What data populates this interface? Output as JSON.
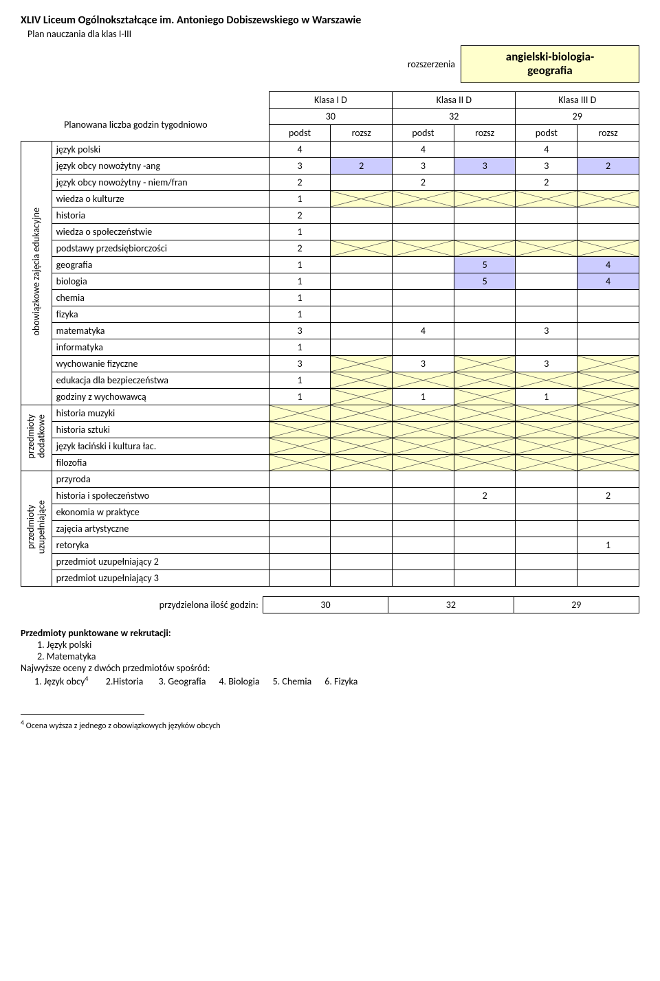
{
  "header": {
    "school": "XLIV Liceum Ogólnokształcące im. Antoniego Dobiszewskiego w Warszawie",
    "plan": "Plan nauczania dla klas I-III",
    "rozsz_label": "rozszerzenia",
    "ext_line1": "angielski-biologia-",
    "ext_line2": "geografia"
  },
  "klasa": {
    "c1": "Klasa I D",
    "c2": "Klasa II D",
    "c3": "Klasa III D"
  },
  "totals": {
    "k1": "30",
    "k2": "32",
    "k3": "29"
  },
  "plan_label": "Planowana liczba godzin tygodniowo",
  "sub": {
    "p": "podst",
    "r": "rozsz"
  },
  "side": {
    "s1": "obowiązkowe zajęcia edukacyjne",
    "s2a": "przedmioty",
    "s2b": "dodatkowe",
    "s3a": "przedmioty",
    "s3b": "uzupełniające"
  },
  "rows": {
    "r1": {
      "label": "język polski",
      "c": [
        "4",
        "",
        "4",
        "",
        "4",
        ""
      ],
      "hl": [],
      "x": []
    },
    "r2": {
      "label": "język obcy nowożytny -ang",
      "c": [
        "3",
        "2",
        "3",
        "3",
        "3",
        "2"
      ],
      "hl": [
        1,
        3,
        5
      ]
    },
    "r3": {
      "label": "język obcy nowożytny - niem/fran",
      "c": [
        "2",
        "",
        "2",
        "",
        "2",
        ""
      ]
    },
    "r4": {
      "label": "wiedza o kulturze",
      "c": [
        "1",
        "",
        "",
        "",
        "",
        ""
      ],
      "x": [
        1,
        2,
        3,
        4,
        5
      ]
    },
    "r5": {
      "label": "historia",
      "c": [
        "2",
        "",
        "",
        "",
        "",
        ""
      ]
    },
    "r6": {
      "label": "wiedza o społeczeństwie",
      "c": [
        "1",
        "",
        "",
        "",
        "",
        ""
      ]
    },
    "r7": {
      "label": "podstawy przedsiębiorczości",
      "c": [
        "2",
        "",
        "",
        "",
        "",
        ""
      ],
      "x": [
        1,
        2,
        3,
        4,
        5
      ]
    },
    "r8": {
      "label": "geografia",
      "c": [
        "1",
        "",
        "",
        "5",
        "",
        "4"
      ],
      "hl": [
        3,
        5
      ]
    },
    "r9": {
      "label": "biologia",
      "c": [
        "1",
        "",
        "",
        "5",
        "",
        "4"
      ],
      "hl": [
        3,
        5
      ]
    },
    "r10": {
      "label": "chemia",
      "c": [
        "1",
        "",
        "",
        "",
        "",
        ""
      ]
    },
    "r11": {
      "label": "fizyka",
      "c": [
        "1",
        "",
        "",
        "",
        "",
        ""
      ]
    },
    "r12": {
      "label": "matematyka",
      "c": [
        "3",
        "",
        "4",
        "",
        "3",
        ""
      ]
    },
    "r13": {
      "label": "informatyka",
      "c": [
        "1",
        "",
        "",
        "",
        "",
        ""
      ]
    },
    "r14": {
      "label": "wychowanie fizyczne",
      "c": [
        "3",
        "",
        "3",
        "",
        "3",
        ""
      ],
      "x": [
        1,
        3,
        5
      ]
    },
    "r15": {
      "label": "edukacja dla bezpieczeństwa",
      "c": [
        "1",
        "",
        "",
        "",
        "",
        ""
      ],
      "x": [
        1,
        2,
        3,
        4,
        5
      ]
    },
    "r16": {
      "label": "godziny z wychowawcą",
      "c": [
        "1",
        "",
        "1",
        "",
        "1",
        ""
      ],
      "x": [
        1,
        3,
        5
      ]
    },
    "r17": {
      "label": "historia muzyki",
      "c": [
        "",
        "",
        "",
        "",
        "",
        ""
      ],
      "x": [
        0,
        1,
        2,
        3,
        4,
        5
      ]
    },
    "r18": {
      "label": "historia sztuki",
      "c": [
        "",
        "",
        "",
        "",
        "",
        ""
      ],
      "x": [
        0,
        1,
        2,
        3,
        4,
        5
      ]
    },
    "r19": {
      "label": "język łaciński i kultura łac.",
      "c": [
        "",
        "",
        "",
        "",
        "",
        ""
      ],
      "x": [
        0,
        1,
        2,
        3,
        4,
        5
      ]
    },
    "r20": {
      "label": "filozofia",
      "c": [
        "",
        "",
        "",
        "",
        "",
        ""
      ],
      "x": [
        0,
        1,
        2,
        3,
        4,
        5
      ]
    },
    "r21": {
      "label": "przyroda",
      "c": [
        "",
        "",
        "",
        "",
        "",
        ""
      ]
    },
    "r22": {
      "label": "historia i społeczeństwo",
      "c": [
        "",
        "",
        "",
        "2",
        "",
        "2"
      ]
    },
    "r23": {
      "label": "ekonomia w praktyce",
      "c": [
        "",
        "",
        "",
        "",
        "",
        ""
      ]
    },
    "r24": {
      "label": "zajęcia artystyczne",
      "c": [
        "",
        "",
        "",
        "",
        "",
        ""
      ]
    },
    "r25": {
      "label": "retoryka",
      "c": [
        "",
        "",
        "",
        "",
        "",
        "1"
      ]
    },
    "r26": {
      "label": "przedmiot uzupełniający 2",
      "c": [
        "",
        "",
        "",
        "",
        "",
        ""
      ]
    },
    "r27": {
      "label": "przedmiot uzupełniający 3",
      "c": [
        "",
        "",
        "",
        "",
        "",
        ""
      ]
    }
  },
  "alloc": {
    "label": "przydzielona ilość godzin:",
    "v1": "30",
    "v2": "32",
    "v3": "29"
  },
  "footer": {
    "punkt": "Przedmioty punktowane w rekrutacji:",
    "p1": "1.  Język polski",
    "p2": "2.  Matematyka",
    "naj": "Najwyższe oceny z dwóch przedmiotów spośród:",
    "opts_a": "1.  Język obcy",
    "opts_sup": "4",
    "opts_b": "2.Historia",
    "opts_c": "3. Geografia",
    "opts_d": "4. Biologia",
    "opts_e": "5. Chemia",
    "opts_f": "6. Fizyka",
    "fn_num": "4",
    "fn_text": " Ocena wyższa z jednego z obowiązkowych języków obcych"
  },
  "layout": {
    "col_side": 30,
    "col_label": 310,
    "col_data": 88
  }
}
